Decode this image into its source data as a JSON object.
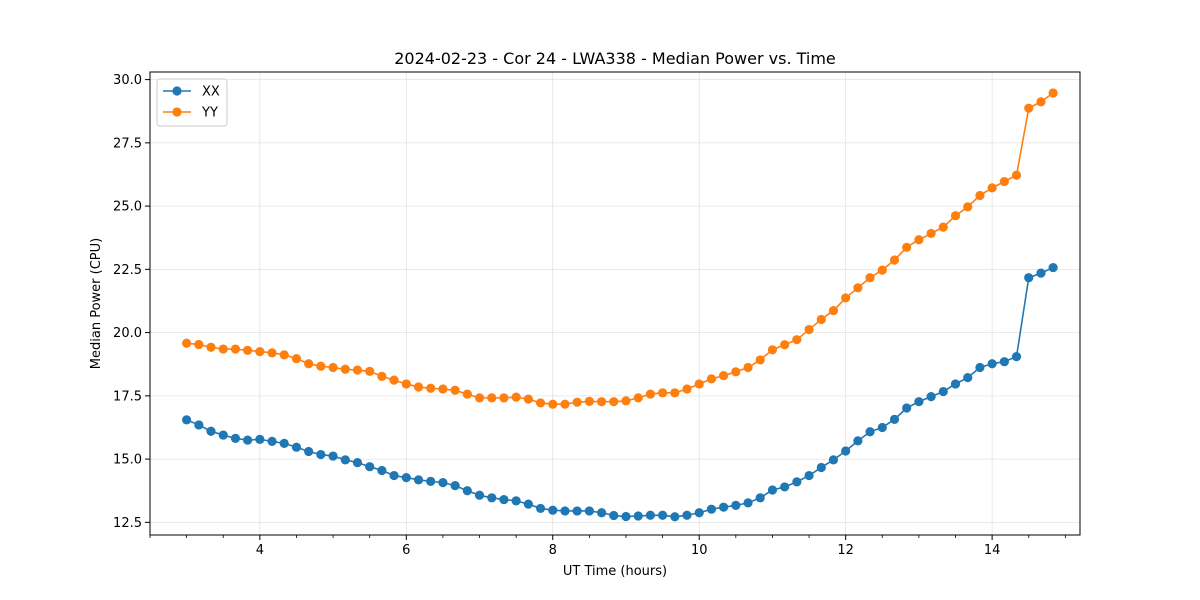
{
  "chart_data": {
    "type": "line",
    "title": "2024-02-23 - Cor 24 - LWA338 - Median Power vs. Time",
    "xlabel": "UT Time (hours)",
    "ylabel": "Median Power (CPU)",
    "xlim": [
      2.5,
      15.2
    ],
    "ylim": [
      12.0,
      30.3
    ],
    "x_ticks": [
      4,
      6,
      8,
      10,
      12,
      14
    ],
    "x_tick_labels": [
      "4",
      "6",
      "8",
      "10",
      "12",
      "14"
    ],
    "y_ticks": [
      12.5,
      15.0,
      17.5,
      20.0,
      22.5,
      25.0,
      27.5,
      30.0
    ],
    "y_tick_labels": [
      "12.5",
      "15.0",
      "17.5",
      "20.0",
      "22.5",
      "25.0",
      "27.5",
      "30.0"
    ],
    "grid": true,
    "legend_position": "upper-left",
    "x": [
      3.0,
      3.167,
      3.333,
      3.5,
      3.667,
      3.833,
      4.0,
      4.167,
      4.333,
      4.5,
      4.667,
      4.833,
      5.0,
      5.167,
      5.333,
      5.5,
      5.667,
      5.833,
      6.0,
      6.167,
      6.333,
      6.5,
      6.667,
      6.833,
      7.0,
      7.167,
      7.333,
      7.5,
      7.667,
      7.833,
      8.0,
      8.167,
      8.333,
      8.5,
      8.667,
      8.833,
      9.0,
      9.167,
      9.333,
      9.5,
      9.667,
      9.833,
      10.0,
      10.167,
      10.333,
      10.5,
      10.667,
      10.833,
      11.0,
      11.167,
      11.333,
      11.5,
      11.667,
      11.833,
      12.0,
      12.167,
      12.333,
      12.5,
      12.667,
      12.833,
      13.0,
      13.167,
      13.333,
      13.5,
      13.667,
      13.833,
      14.0,
      14.167,
      14.333,
      14.5,
      14.667,
      14.833
    ],
    "series": [
      {
        "name": "XX",
        "color": "#1f77b4",
        "values": [
          16.55,
          16.35,
          16.1,
          15.95,
          15.82,
          15.75,
          15.78,
          15.7,
          15.62,
          15.47,
          15.3,
          15.18,
          15.12,
          14.97,
          14.86,
          14.7,
          14.55,
          14.35,
          14.27,
          14.18,
          14.12,
          14.07,
          13.95,
          13.75,
          13.57,
          13.47,
          13.4,
          13.35,
          13.22,
          13.05,
          12.98,
          12.95,
          12.95,
          12.95,
          12.88,
          12.77,
          12.73,
          12.75,
          12.78,
          12.78,
          12.72,
          12.78,
          12.88,
          13.02,
          13.1,
          13.17,
          13.27,
          13.47,
          13.78,
          13.9,
          14.1,
          14.35,
          14.67,
          14.97,
          15.32,
          15.72,
          16.08,
          16.25,
          16.57,
          17.02,
          17.27,
          17.47,
          17.67,
          17.97,
          18.22,
          18.62,
          18.77,
          18.85,
          19.05,
          22.17,
          22.35,
          22.57
        ]
      },
      {
        "name": "YY",
        "color": "#ff7f0e",
        "values": [
          19.58,
          19.53,
          19.42,
          19.35,
          19.35,
          19.3,
          19.25,
          19.2,
          19.12,
          18.97,
          18.77,
          18.67,
          18.62,
          18.55,
          18.52,
          18.47,
          18.27,
          18.12,
          17.97,
          17.85,
          17.8,
          17.77,
          17.72,
          17.57,
          17.42,
          17.42,
          17.42,
          17.45,
          17.37,
          17.22,
          17.17,
          17.17,
          17.25,
          17.28,
          17.27,
          17.27,
          17.3,
          17.42,
          17.57,
          17.62,
          17.62,
          17.77,
          17.97,
          18.17,
          18.3,
          18.45,
          18.62,
          18.92,
          19.32,
          19.52,
          19.72,
          20.12,
          20.52,
          20.87,
          21.37,
          21.77,
          22.17,
          22.47,
          22.87,
          23.37,
          23.67,
          23.92,
          24.17,
          24.62,
          24.97,
          25.42,
          25.72,
          25.97,
          26.22,
          28.87,
          29.12,
          29.47
        ]
      }
    ]
  }
}
